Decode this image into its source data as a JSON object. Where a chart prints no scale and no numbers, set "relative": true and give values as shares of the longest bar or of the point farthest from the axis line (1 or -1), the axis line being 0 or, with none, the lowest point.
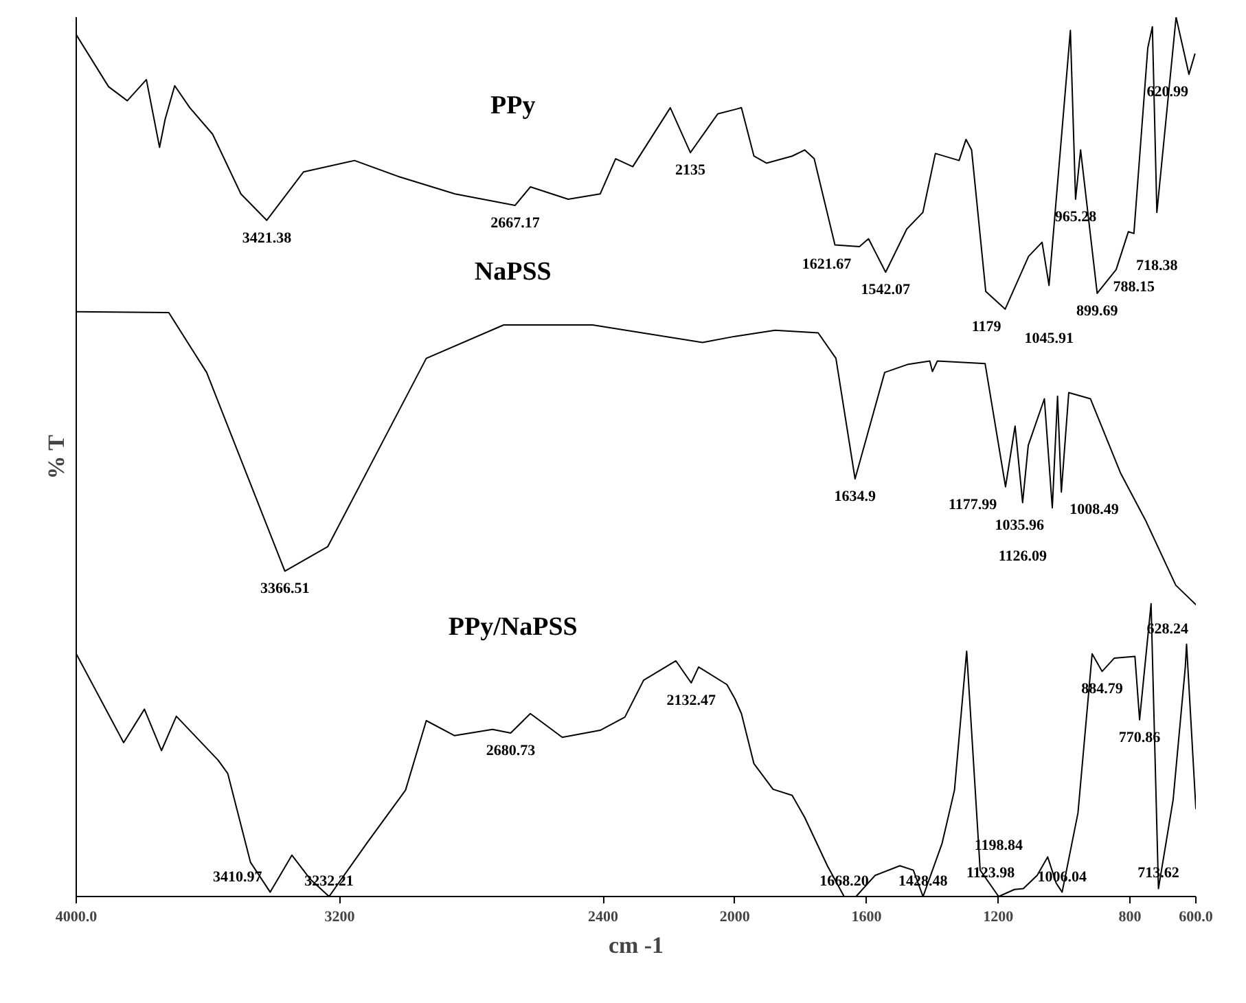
{
  "chart_data": {
    "type": "line",
    "relative": true,
    "xlabel": "cm -1",
    "ylabel": "% T",
    "xlim": [
      4000,
      600
    ],
    "xticks": [
      {
        "value": 4000,
        "label": "4000.0"
      },
      3200,
      2400,
      2000,
      1600,
      1200,
      800,
      {
        "value": 600,
        "label": "600.0"
      }
    ],
    "grid": false,
    "marker": "none",
    "line_style": "solid",
    "series": [
      {
        "name": "PPy",
        "color": "#000000",
        "x": [
          4000,
          3902,
          3845,
          3787,
          3747,
          3730,
          3701,
          3655,
          3586,
          3500,
          3421.38,
          3310,
          3155,
          3023,
          2850,
          2667.17,
          2621,
          2506,
          2409,
          2362,
          2310,
          2196,
          2135,
          2052,
          2000,
          1980,
          1942,
          1904,
          1826,
          1788,
          1759,
          1696,
          1621.67,
          1594,
          1542.07,
          1478,
          1429,
          1391,
          1319,
          1298,
          1281,
          1238,
          1179,
          1108,
          1067,
          1045.91,
          981,
          965.28,
          950,
          899.69,
          842,
          805,
          788.15,
          746,
          732,
          718.38,
          660,
          620.99,
          603
        ],
        "values": [
          0.98,
          0.921,
          0.905,
          0.929,
          0.852,
          0.884,
          0.922,
          0.897,
          0.867,
          0.799,
          0.769,
          0.824,
          0.837,
          0.819,
          0.799,
          0.786,
          0.807,
          0.793,
          0.799,
          0.839,
          0.83,
          0.897,
          0.846,
          0.89,
          0.895,
          0.897,
          0.842,
          0.834,
          0.842,
          0.849,
          0.839,
          0.741,
          0.739,
          0.748,
          0.71,
          0.759,
          0.778,
          0.845,
          0.837,
          0.861,
          0.849,
          0.688,
          0.668,
          0.728,
          0.744,
          0.695,
          0.985,
          0.793,
          0.849,
          0.686,
          0.713,
          0.756,
          0.754,
          0.965,
          0.989,
          0.778,
          1.0,
          0.935,
          0.958
        ]
      },
      {
        "name": "NaPSS",
        "color": "#000000",
        "x": [
          4000,
          3719,
          3604,
          3366.51,
          3236,
          2937,
          2702,
          2432,
          2098,
          2000,
          1878,
          1747,
          1693,
          1634.9,
          1545,
          1476,
          1408,
          1400,
          1385,
          1240,
          1177.99,
          1149,
          1126.09,
          1109,
          1060,
          1035.96,
          1020,
          1008.49,
          986,
          920,
          828,
          753,
          661,
          600
        ],
        "values": [
          0.665,
          0.664,
          0.596,
          0.37,
          0.398,
          0.612,
          0.65,
          0.65,
          0.63,
          0.637,
          0.644,
          0.641,
          0.612,
          0.475,
          0.596,
          0.605,
          0.609,
          0.597,
          0.609,
          0.606,
          0.466,
          0.535,
          0.448,
          0.513,
          0.566,
          0.442,
          0.569,
          0.46,
          0.573,
          0.566,
          0.481,
          0.428,
          0.354,
          0.332
        ]
      },
      {
        "name": "PPy/NaPSS",
        "color": "#000000",
        "x": [
          4000,
          3856,
          3793,
          3741,
          3696,
          3569,
          3540,
          3471,
          3410.97,
          3345,
          3290,
          3232.21,
          3115,
          3000,
          2937,
          2851,
          2736,
          2680.73,
          2621,
          2524,
          2409,
          2334,
          2277,
          2179,
          2132.47,
          2110,
          2024,
          2000,
          1980,
          1942,
          1884,
          1826,
          1788,
          1719,
          1668.2,
          1632,
          1574,
          1499,
          1458,
          1428.48,
          1371,
          1333,
          1296,
          1255,
          1198.84,
          1151,
          1123.98,
          1082,
          1050,
          1024,
          1006.04,
          958,
          915,
          884.79,
          848,
          785,
          770.86,
          736,
          713.62,
          669,
          632,
          628.24,
          600
        ],
        "values": [
          0.276,
          0.175,
          0.213,
          0.166,
          0.205,
          0.155,
          0.14,
          0.039,
          0.005,
          0.047,
          0.02,
          0.0,
          0.062,
          0.121,
          0.2,
          0.183,
          0.19,
          0.186,
          0.208,
          0.181,
          0.189,
          0.204,
          0.246,
          0.268,
          0.243,
          0.261,
          0.241,
          0.225,
          0.208,
          0.151,
          0.122,
          0.115,
          0.09,
          0.035,
          0.0,
          0.0,
          0.024,
          0.035,
          0.03,
          0.0,
          0.06,
          0.121,
          0.279,
          0.03,
          0.0,
          0.008,
          0.009,
          0.024,
          0.045,
          0.015,
          0.005,
          0.095,
          0.276,
          0.256,
          0.271,
          0.273,
          0.201,
          0.333,
          0.009,
          0.11,
          0.261,
          0.287,
          0.1
        ]
      }
    ],
    "annotations": [
      {
        "text": "3421.38",
        "x": 3421.38,
        "y": 0.769
      },
      {
        "text": "2667.17",
        "x": 2667.17,
        "y": 0.786
      },
      {
        "text": "2135",
        "x": 2135,
        "y": 0.846
      },
      {
        "text": "1621.67",
        "x": 1621.67,
        "y": 0.739
      },
      {
        "text": "1542.07",
        "x": 1542.07,
        "y": 0.71
      },
      {
        "text": "1179",
        "x": 1179,
        "y": 0.668
      },
      {
        "text": "1045.91",
        "x": 1045.91,
        "y": 0.695
      },
      {
        "text": "965.28",
        "x": 965.28,
        "y": 0.793
      },
      {
        "text": "899.69",
        "x": 899.69,
        "y": 0.686
      },
      {
        "text": "788.15",
        "x": 788.15,
        "y": 0.754
      },
      {
        "text": "718.38",
        "x": 718.38,
        "y": 0.778
      },
      {
        "text": "620.99",
        "x": 620.99,
        "y": 0.935
      },
      {
        "text": "3366.51",
        "x": 3366.51,
        "y": 0.37
      },
      {
        "text": "1634.9",
        "x": 1634.9,
        "y": 0.475
      },
      {
        "text": "1177.99",
        "x": 1177.99,
        "y": 0.466
      },
      {
        "text": "1126.09",
        "x": 1126.09,
        "y": 0.448
      },
      {
        "text": "1035.96",
        "x": 1035.96,
        "y": 0.442
      },
      {
        "text": "1008.49",
        "x": 1008.49,
        "y": 0.46
      },
      {
        "text": "3410.97",
        "x": 3410.97,
        "y": 0.005
      },
      {
        "text": "3232.21",
        "x": 3232.21,
        "y": 0.0
      },
      {
        "text": "2680.73",
        "x": 2680.73,
        "y": 0.186
      },
      {
        "text": "2132.47",
        "x": 2132.47,
        "y": 0.243
      },
      {
        "text": "1668.20",
        "x": 1668.2,
        "y": 0.0
      },
      {
        "text": "1428.48",
        "x": 1428.48,
        "y": 0.0
      },
      {
        "text": "1198.84",
        "x": 1198.84,
        "y": 0.0
      },
      {
        "text": "1123.98",
        "x": 1123.98,
        "y": 0.009
      },
      {
        "text": "1006.04",
        "x": 1006.04,
        "y": 0.005
      },
      {
        "text": "884.79",
        "x": 884.79,
        "y": 0.256
      },
      {
        "text": "770.86",
        "x": 770.86,
        "y": 0.201
      },
      {
        "text": "713.62",
        "x": 713.62,
        "y": 0.009
      },
      {
        "text": "628.24",
        "x": 628.24,
        "y": 0.287
      }
    ]
  }
}
